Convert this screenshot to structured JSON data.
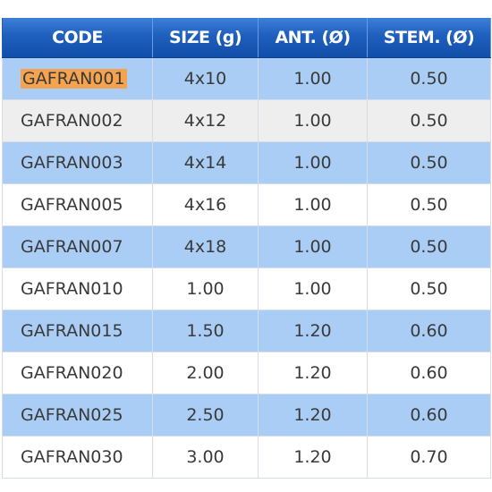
{
  "table": {
    "headers": [
      "CODE",
      "SIZE (g)",
      "ANT. (Ø)",
      "STEM. (Ø)"
    ],
    "rows": [
      {
        "code": "GAFRAN001",
        "size": "4x10",
        "ant": "1.00",
        "stem": "0.50"
      },
      {
        "code": "GAFRAN002",
        "size": "4x12",
        "ant": "1.00",
        "stem": "0.50"
      },
      {
        "code": "GAFRAN003",
        "size": "4x14",
        "ant": "1.00",
        "stem": "0.50"
      },
      {
        "code": "GAFRAN005",
        "size": "4x16",
        "ant": "1.00",
        "stem": "0.50"
      },
      {
        "code": "GAFRAN007",
        "size": "4x18",
        "ant": "1.00",
        "stem": "0.50"
      },
      {
        "code": "GAFRAN010",
        "size": "1.00",
        "ant": "1.00",
        "stem": "0.50"
      },
      {
        "code": "GAFRAN015",
        "size": "1.50",
        "ant": "1.20",
        "stem": "0.60"
      },
      {
        "code": "GAFRAN020",
        "size": "2.00",
        "ant": "1.20",
        "stem": "0.60"
      },
      {
        "code": "GAFRAN025",
        "size": "2.50",
        "ant": "1.20",
        "stem": "0.60"
      },
      {
        "code": "GAFRAN030",
        "size": "3.00",
        "ant": "1.20",
        "stem": "0.70"
      }
    ]
  },
  "colors": {
    "header_blue": "#1f5fbe",
    "row_blue": "#a9cdf5",
    "row_grey": "#eeeeee",
    "highlight_orange": "#f5a34f"
  }
}
